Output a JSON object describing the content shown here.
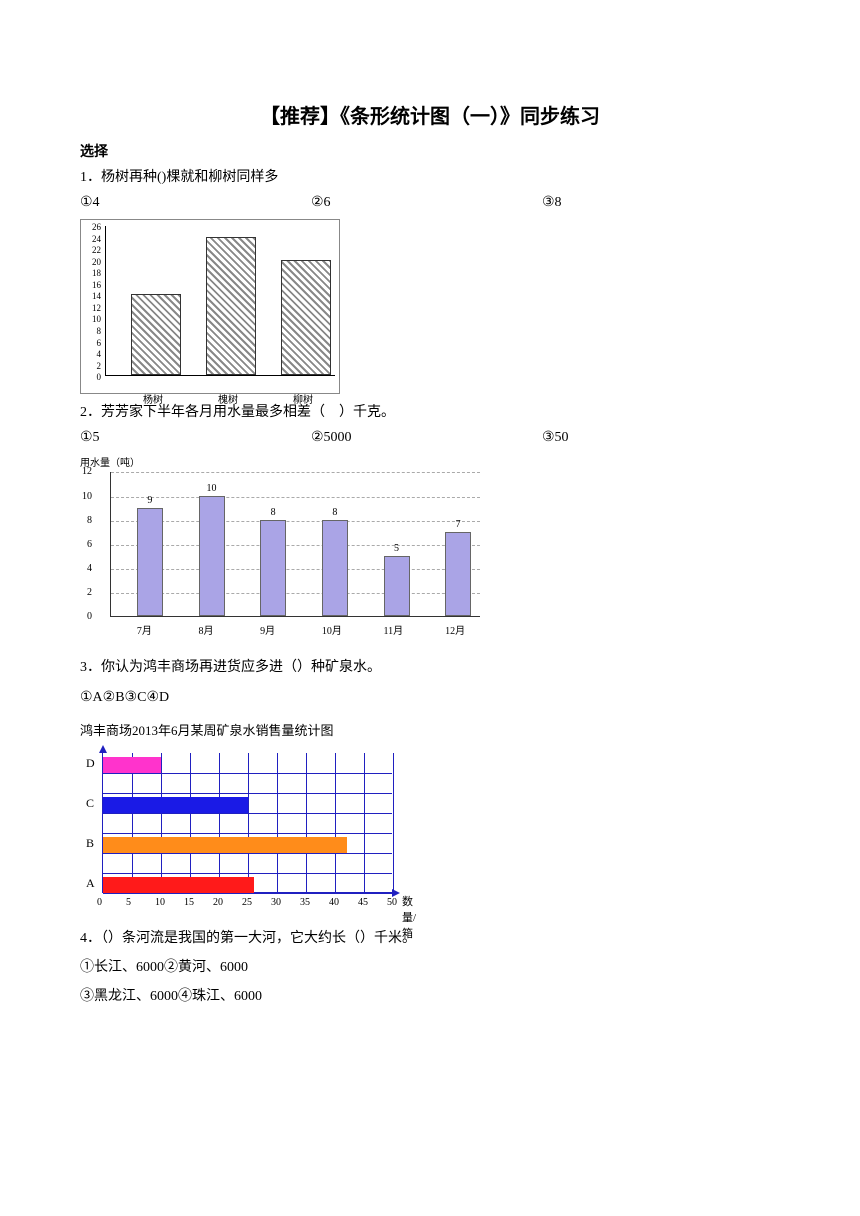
{
  "title": "【推荐】《条形统计图（一）》同步练习",
  "section_header": "选择",
  "q1": {
    "text": "1．杨树再种()棵就和柳树同样多",
    "options": [
      "①4",
      "②6",
      "③8"
    ],
    "chart": {
      "type": "bar",
      "categories": [
        "杨树",
        "槐树",
        "柳树"
      ],
      "values": [
        14,
        24,
        20
      ],
      "ymax": 26,
      "ytick_step": 2,
      "bar_fill": "hatched",
      "border_color": "#888888"
    }
  },
  "q2": {
    "text": "2．芳芳家下半年各月用水量最多相差（　）千克。",
    "options": [
      "①5",
      "②5000",
      "③50"
    ],
    "chart": {
      "type": "bar",
      "y_axis_label": "用水量（吨）",
      "categories": [
        "7月",
        "8月",
        "9月",
        "10月",
        "11月",
        "12月"
      ],
      "values": [
        9,
        10,
        8,
        8,
        5,
        7
      ],
      "ymax": 12,
      "ytick_step": 2,
      "bar_color": "#aaa4e6",
      "grid_color": "#aaaaaa",
      "axis_color": "#333333",
      "background_color": "#ffffff"
    }
  },
  "q3": {
    "text": "3．你认为鸿丰商场再进货应多进（）种矿泉水。",
    "options_line": "①A②B③C④D",
    "chart": {
      "type": "horizontal-bar",
      "title": "鸿丰商场2013年6月某周矿泉水销售量统计图",
      "categories": [
        "D",
        "C",
        "B",
        "A"
      ],
      "values": [
        10,
        25,
        42,
        26
      ],
      "bar_colors": [
        "#ff33cc",
        "#1a1ae6",
        "#ff8c1a",
        "#ff1a1a"
      ],
      "xmax": 50,
      "xtick_step": 5,
      "x_axis_label": "数量/箱",
      "grid_color": "#2020c0",
      "axis_color": "#2020c0"
    }
  },
  "q4": {
    "text": "4．（）条河流是我国的第一大河，它大约长（）千米。",
    "options_line1": "①长江、6000②黄河、6000",
    "options_line2": "③黑龙江、6000④珠江、6000"
  }
}
